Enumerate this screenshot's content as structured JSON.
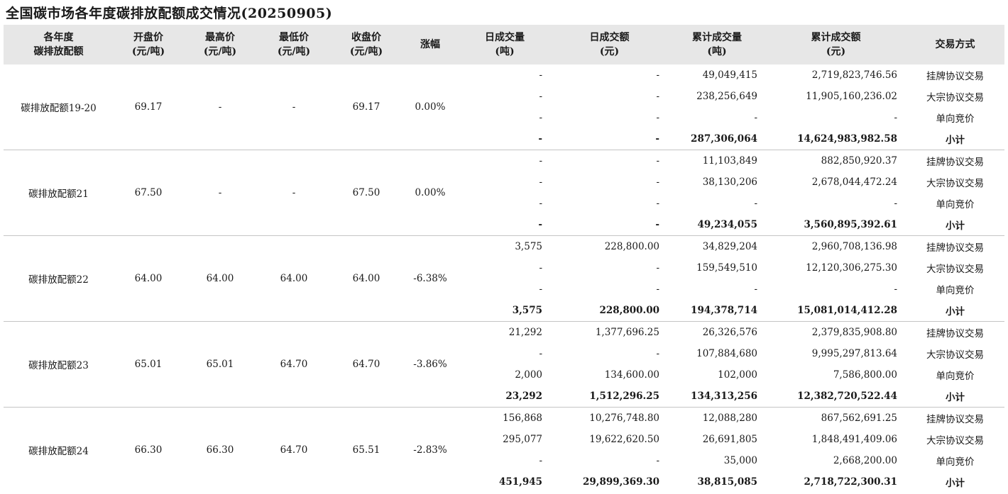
{
  "title": "全国碳市场各年度碳排放配额成交情况(20250905)",
  "headers": [
    [
      "各年度",
      "碳排放配额"
    ],
    [
      "开盘价",
      "(元/吨)"
    ],
    [
      "最高价",
      "(元/吨)"
    ],
    [
      "最低价",
      "(元/吨)"
    ],
    [
      "收盘价",
      "(元/吨)"
    ],
    [
      "涨幅",
      ""
    ],
    [
      "日成交量",
      "(吨)"
    ],
    [
      "日成交额",
      "(元)"
    ],
    [
      "累计成交量",
      "(吨)"
    ],
    [
      "累计成交额",
      "(元)"
    ],
    [
      "交易方式",
      ""
    ]
  ],
  "groups": [
    {
      "name": "碳排放配额19-20",
      "open": "69.17",
      "high": "-",
      "low": "-",
      "close": "69.17",
      "change": "0.00%",
      "rows": [
        {
          "dvol": "-",
          "damt": "-",
          "cvol": "49,049,415",
          "camt": "2,719,823,746.56",
          "type": "挂牌协议交易"
        },
        {
          "dvol": "-",
          "damt": "-",
          "cvol": "238,256,649",
          "camt": "11,905,160,236.02",
          "type": "大宗协议交易"
        },
        {
          "dvol": "-",
          "damt": "-",
          "cvol": "-",
          "camt": "-",
          "type": "单向竞价"
        },
        {
          "dvol": "-",
          "damt": "-",
          "cvol": "287,306,064",
          "camt": "14,624,983,982.58",
          "type": "小计"
        }
      ]
    },
    {
      "name": "碳排放配额21",
      "open": "67.50",
      "high": "-",
      "low": "-",
      "close": "67.50",
      "change": "0.00%",
      "rows": [
        {
          "dvol": "-",
          "damt": "-",
          "cvol": "11,103,849",
          "camt": "882,850,920.37",
          "type": "挂牌协议交易"
        },
        {
          "dvol": "-",
          "damt": "-",
          "cvol": "38,130,206",
          "camt": "2,678,044,472.24",
          "type": "大宗协议交易"
        },
        {
          "dvol": "-",
          "damt": "-",
          "cvol": "-",
          "camt": "-",
          "type": "单向竞价"
        },
        {
          "dvol": "-",
          "damt": "-",
          "cvol": "49,234,055",
          "camt": "3,560,895,392.61",
          "type": "小计"
        }
      ]
    },
    {
      "name": "碳排放配额22",
      "open": "64.00",
      "high": "64.00",
      "low": "64.00",
      "close": "64.00",
      "change": "-6.38%",
      "rows": [
        {
          "dvol": "3,575",
          "damt": "228,800.00",
          "cvol": "34,829,204",
          "camt": "2,960,708,136.98",
          "type": "挂牌协议交易"
        },
        {
          "dvol": "-",
          "damt": "-",
          "cvol": "159,549,510",
          "camt": "12,120,306,275.30",
          "type": "大宗协议交易"
        },
        {
          "dvol": "-",
          "damt": "-",
          "cvol": "-",
          "camt": "-",
          "type": "单向竞价"
        },
        {
          "dvol": "3,575",
          "damt": "228,800.00",
          "cvol": "194,378,714",
          "camt": "15,081,014,412.28",
          "type": "小计"
        }
      ]
    },
    {
      "name": "碳排放配额23",
      "open": "65.01",
      "high": "65.01",
      "low": "64.70",
      "close": "64.70",
      "change": "-3.86%",
      "rows": [
        {
          "dvol": "21,292",
          "damt": "1,377,696.25",
          "cvol": "26,326,576",
          "camt": "2,379,835,908.80",
          "type": "挂牌协议交易"
        },
        {
          "dvol": "-",
          "damt": "-",
          "cvol": "107,884,680",
          "camt": "9,995,297,813.64",
          "type": "大宗协议交易"
        },
        {
          "dvol": "2,000",
          "damt": "134,600.00",
          "cvol": "102,000",
          "camt": "7,586,800.00",
          "type": "单向竞价"
        },
        {
          "dvol": "23,292",
          "damt": "1,512,296.25",
          "cvol": "134,313,256",
          "camt": "12,382,720,522.44",
          "type": "小计"
        }
      ]
    },
    {
      "name": "碳排放配额24",
      "open": "66.30",
      "high": "66.30",
      "low": "64.70",
      "close": "65.51",
      "change": "-2.83%",
      "rows": [
        {
          "dvol": "156,868",
          "damt": "10,276,748.80",
          "cvol": "12,088,280",
          "camt": "867,562,691.25",
          "type": "挂牌协议交易"
        },
        {
          "dvol": "295,077",
          "damt": "19,622,620.50",
          "cvol": "26,691,805",
          "camt": "1,848,491,409.06",
          "type": "大宗协议交易"
        },
        {
          "dvol": "-",
          "damt": "-",
          "cvol": "35,000",
          "camt": "2,668,200.00",
          "type": "单向竞价"
        },
        {
          "dvol": "451,945",
          "damt": "29,899,369.30",
          "cvol": "38,815,085",
          "camt": "2,718,722,300.31",
          "type": "小计"
        }
      ]
    }
  ]
}
